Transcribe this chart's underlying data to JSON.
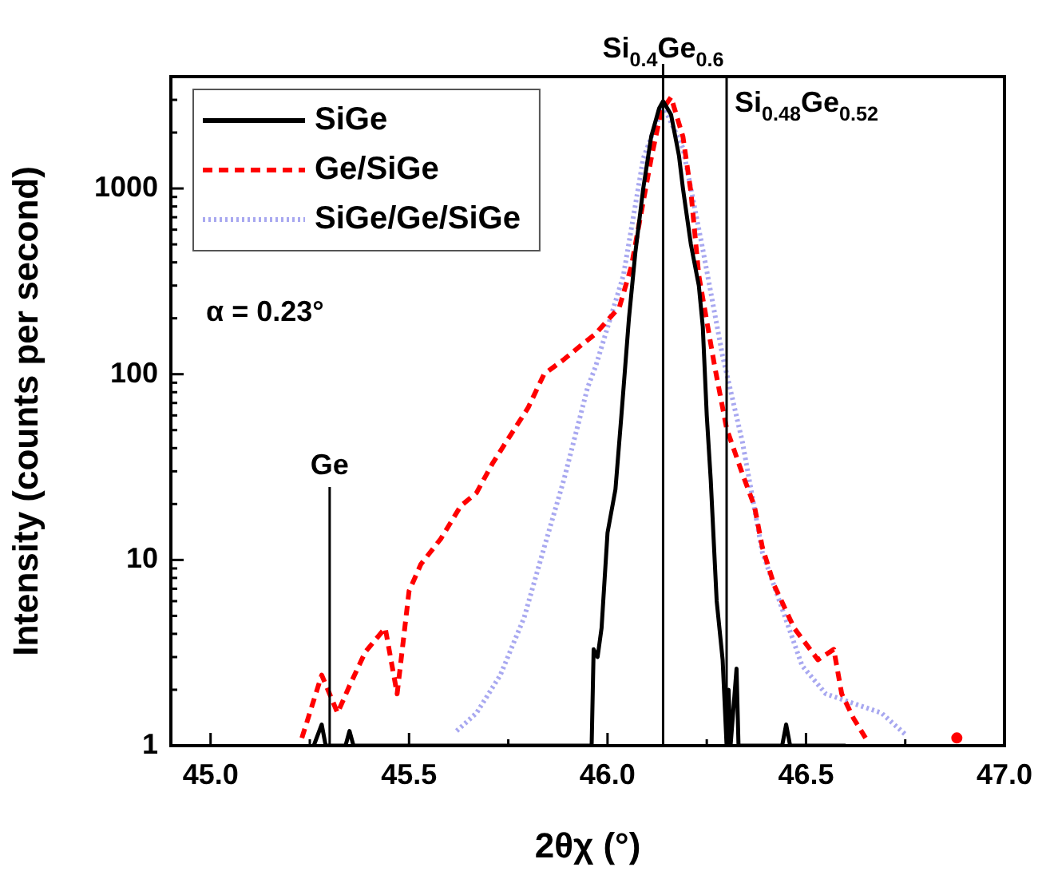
{
  "chart_data": {
    "type": "line",
    "xlabel": "2θχ (°)",
    "ylabel": "Intensity (counts per second)",
    "log": "y",
    "grid": false,
    "legend": "top left",
    "marker": "none",
    "xlim": [
      44.9,
      47.0
    ],
    "xticks": [
      {
        "value": 45,
        "label": "45.0"
      },
      {
        "value": 45.25,
        "label": null
      },
      45.5,
      {
        "value": 45.75,
        "label": null
      },
      {
        "value": 46,
        "label": "46.0"
      },
      {
        "value": 46.25,
        "label": null
      },
      46.5,
      {
        "value": 46.75,
        "label": null
      },
      {
        "value": 47,
        "label": "47.0"
      }
    ],
    "ylim": [
      1,
      4000
    ],
    "yticks": [
      1,
      {
        "value": 2,
        "label": null
      },
      {
        "value": 3,
        "label": null
      },
      {
        "value": 4,
        "label": null
      },
      {
        "value": 5,
        "label": null
      },
      {
        "value": 6,
        "label": null
      },
      {
        "value": 7,
        "label": null
      },
      {
        "value": 8,
        "label": null
      },
      {
        "value": 9,
        "label": null
      },
      10,
      {
        "value": 20,
        "label": null
      },
      {
        "value": 30,
        "label": null
      },
      {
        "value": 40,
        "label": null
      },
      {
        "value": 50,
        "label": null
      },
      {
        "value": 60,
        "label": null
      },
      {
        "value": 70,
        "label": null
      },
      {
        "value": 80,
        "label": null
      },
      {
        "value": 90,
        "label": null
      },
      100,
      {
        "value": 200,
        "label": null
      },
      {
        "value": 300,
        "label": null
      },
      {
        "value": 400,
        "label": null
      },
      {
        "value": 500,
        "label": null
      },
      {
        "value": 600,
        "label": null
      },
      {
        "value": 700,
        "label": null
      },
      {
        "value": 800,
        "label": null
      },
      {
        "value": 900,
        "label": null
      },
      1000,
      {
        "value": 2000,
        "label": null
      },
      {
        "value": 3000,
        "label": null
      }
    ],
    "series": [
      {
        "name": "SiGe",
        "color": "#000000",
        "line_style": "solid",
        "x": [
          45.26,
          45.28,
          45.29,
          45.34,
          45.35,
          45.36,
          45.96,
          45.965,
          45.975,
          45.985,
          46.0,
          46.02,
          46.035,
          46.054,
          46.07,
          46.09,
          46.11,
          46.13,
          46.14,
          46.16,
          46.18,
          46.19,
          46.21,
          46.23,
          46.24,
          46.25,
          46.26,
          46.275,
          46.29,
          46.3,
          46.305,
          46.31,
          46.325,
          46.33,
          46.44,
          46.45,
          46.46,
          46.6
        ],
        "values": [
          1,
          1.3,
          1,
          1,
          1.2,
          1,
          1,
          3.3,
          3,
          4.3,
          14,
          24,
          60,
          200,
          450,
          1000,
          1900,
          2700,
          2950,
          2500,
          1500,
          1000,
          500,
          300,
          180,
          60,
          27,
          6,
          2.9,
          1,
          2,
          1,
          2.6,
          1,
          1,
          1.3,
          1,
          1
        ]
      },
      {
        "name": "Ge/SiGe",
        "color": "#ff0000",
        "line_style": "dashed",
        "x": [
          45.23,
          45.28,
          45.32,
          45.35,
          45.39,
          45.44,
          45.47,
          45.5,
          45.53,
          45.58,
          45.63,
          45.67,
          45.71,
          45.75,
          45.8,
          45.84,
          45.89,
          45.94,
          45.97,
          46.03,
          46.06,
          46.08,
          46.11,
          46.135,
          46.16,
          46.19,
          46.21,
          46.23,
          46.27,
          46.3,
          46.34,
          46.37,
          46.39,
          46.42,
          46.47,
          46.53,
          46.57,
          46.59,
          46.62,
          46.65,
          46.7,
          46.88
        ],
        "values": [
          1.1,
          2.4,
          1.5,
          2.1,
          3.2,
          4.3,
          1.9,
          6.8,
          9.5,
          13,
          19.5,
          23,
          33,
          45,
          66,
          100,
          120,
          147,
          165,
          230,
          380,
          650,
          1450,
          2600,
          3100,
          1900,
          960,
          340,
          110,
          51,
          29,
          19.5,
          11.7,
          7.3,
          4.3,
          2.9,
          3.3,
          1.9,
          1.4,
          1.1,
          null,
          1.1
        ]
      },
      {
        "name": "SiGe/Ge/SiGe",
        "color": "#a8a8f0",
        "line_style": "dotted",
        "x": [
          45.62,
          45.67,
          45.73,
          45.79,
          45.84,
          45.89,
          45.95,
          45.97,
          46.04,
          46.09,
          46.14,
          46.19,
          46.24,
          46.29,
          46.34,
          46.39,
          46.49,
          46.55,
          46.69,
          46.75
        ],
        "values": [
          1.2,
          1.5,
          2.4,
          4.9,
          11.6,
          27,
          85,
          110,
          340,
          1450,
          2800,
          1650,
          470,
          125,
          43,
          11,
          2.7,
          1.9,
          1.5,
          1.15
        ]
      }
    ],
    "ref_lines": [
      {
        "axis": "x",
        "value": 45.3,
        "label": "Ge",
        "color": "#000000"
      },
      {
        "axis": "x",
        "value": 46.14,
        "label": "Si$_{0.4}$Ge$_{0.6}$",
        "color": "#000000"
      },
      {
        "axis": "x",
        "value": 46.3,
        "label": "Si$_{0.48}$Ge$_{0.52}$",
        "color": "#000000"
      }
    ],
    "annotations": [
      "α = 0.23°"
    ]
  }
}
